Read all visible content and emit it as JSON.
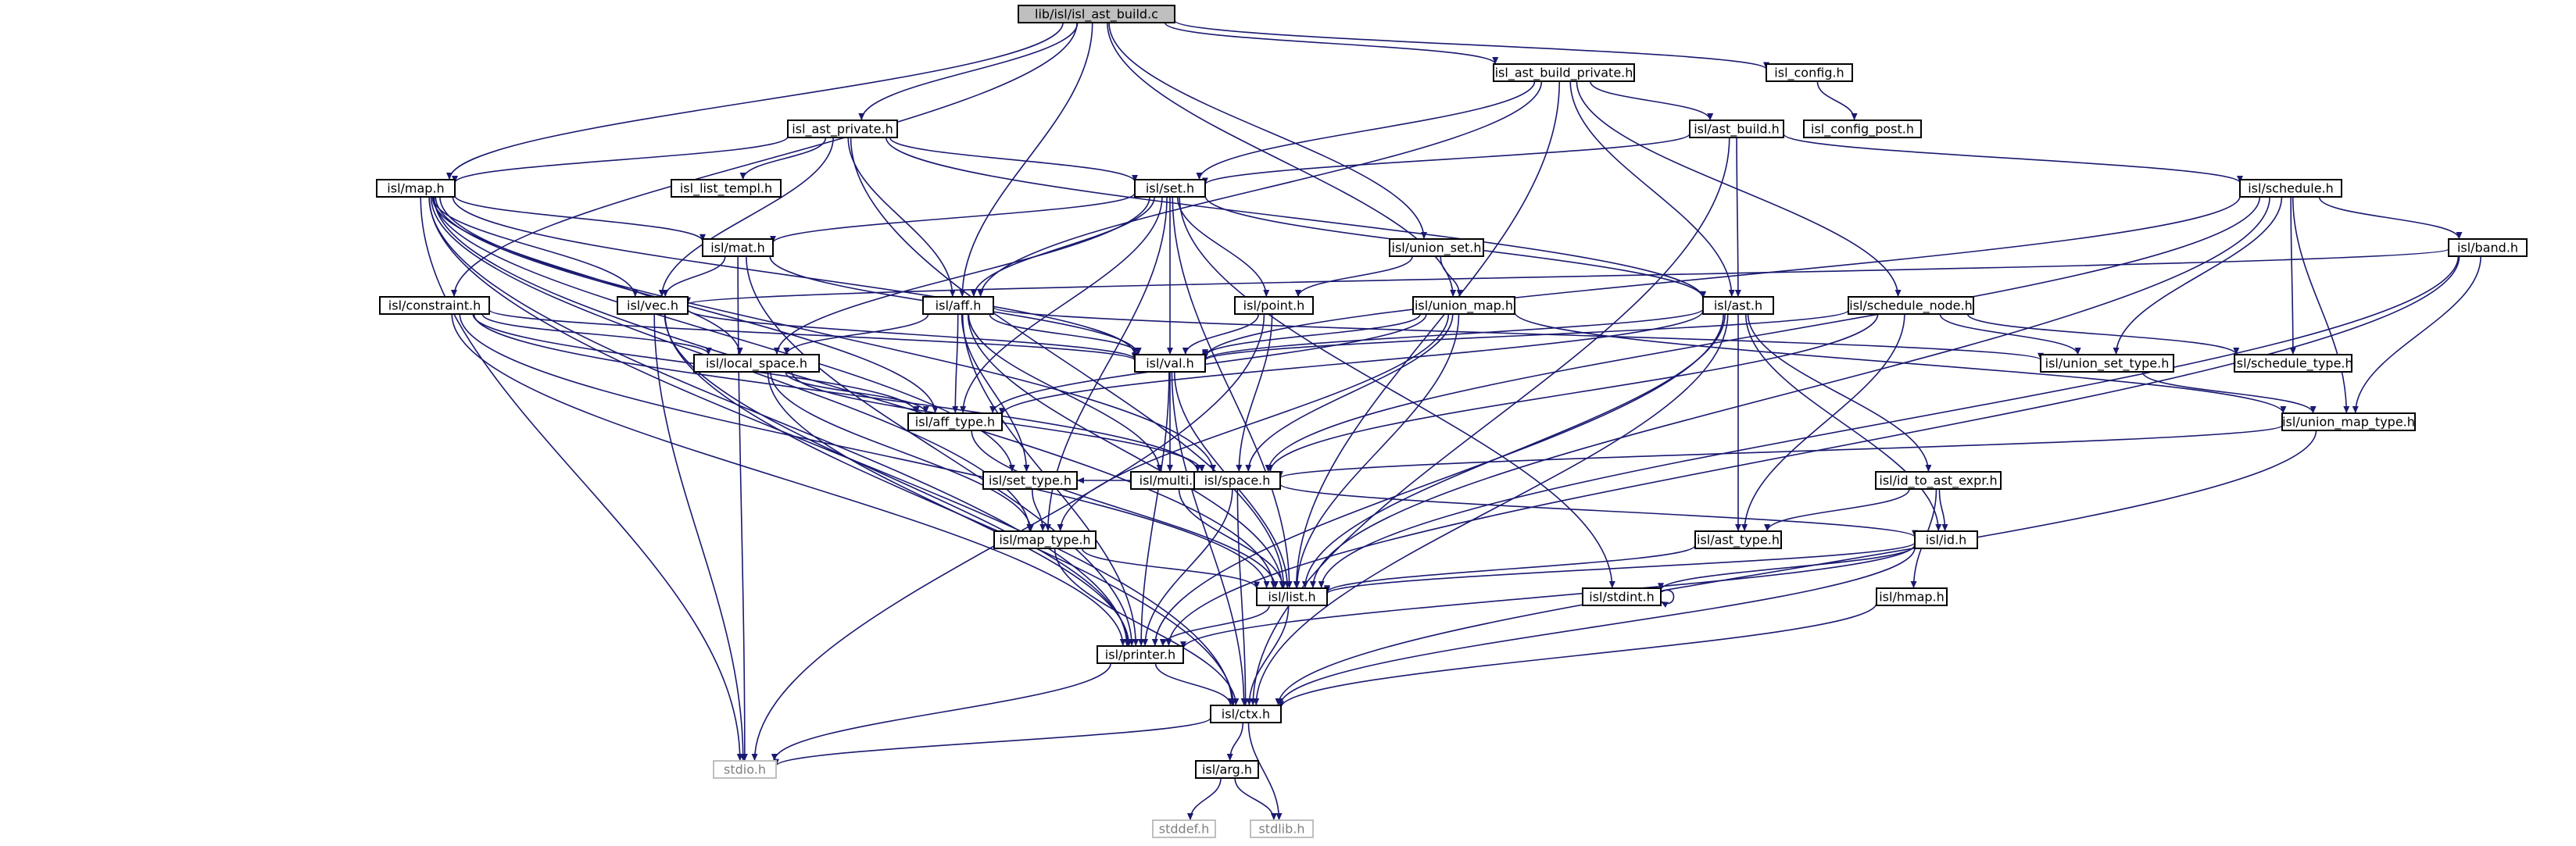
{
  "diagram": {
    "root": "lib/isl/isl_ast_build.c",
    "colors": {
      "edge": "#191970",
      "root_fill": "#bfbfbf",
      "node_border": "#000000",
      "system_border": "#bfbfbf",
      "system_text": "#7f7f7f"
    },
    "nodes": [
      {
        "id": "root",
        "label": "lib/isl/isl_ast_build.c",
        "kind": "root"
      },
      {
        "id": "ast_build_private",
        "label": "isl_ast_build_private.h"
      },
      {
        "id": "config",
        "label": "isl_config.h"
      },
      {
        "id": "config_post",
        "label": "isl_config_post.h"
      },
      {
        "id": "ast_private",
        "label": "isl_ast_private.h"
      },
      {
        "id": "ast_build",
        "label": "isl/ast_build.h"
      },
      {
        "id": "list_templ",
        "label": "isl_list_templ.h"
      },
      {
        "id": "map",
        "label": "isl/map.h"
      },
      {
        "id": "set",
        "label": "isl/set.h"
      },
      {
        "id": "schedule",
        "label": "isl/schedule.h"
      },
      {
        "id": "mat",
        "label": "isl/mat.h"
      },
      {
        "id": "union_set",
        "label": "isl/union_set.h"
      },
      {
        "id": "band",
        "label": "isl/band.h"
      },
      {
        "id": "constraint",
        "label": "isl/constraint.h"
      },
      {
        "id": "vec",
        "label": "isl/vec.h"
      },
      {
        "id": "aff",
        "label": "isl/aff.h"
      },
      {
        "id": "point",
        "label": "isl/point.h"
      },
      {
        "id": "union_map",
        "label": "isl/union_map.h"
      },
      {
        "id": "ast",
        "label": "isl/ast.h"
      },
      {
        "id": "schedule_node",
        "label": "isl/schedule_node.h"
      },
      {
        "id": "local_space",
        "label": "isl/local_space.h"
      },
      {
        "id": "val",
        "label": "isl/val.h"
      },
      {
        "id": "union_set_type",
        "label": "isl/union_set_type.h"
      },
      {
        "id": "schedule_type",
        "label": "isl/schedule_type.h"
      },
      {
        "id": "aff_type",
        "label": "isl/aff_type.h"
      },
      {
        "id": "union_map_type",
        "label": "isl/union_map_type.h"
      },
      {
        "id": "multi",
        "label": "isl/multi.h"
      },
      {
        "id": "set_type",
        "label": "isl/set_type.h"
      },
      {
        "id": "space",
        "label": "isl/space.h"
      },
      {
        "id": "id_to_ast_expr",
        "label": "isl/id_to_ast_expr.h"
      },
      {
        "id": "map_type",
        "label": "isl/map_type.h"
      },
      {
        "id": "ast_type",
        "label": "isl/ast_type.h"
      },
      {
        "id": "id",
        "label": "isl/id.h"
      },
      {
        "id": "list",
        "label": "isl/list.h"
      },
      {
        "id": "stdint",
        "label": "isl/stdint.h"
      },
      {
        "id": "hmap",
        "label": "isl/hmap.h"
      },
      {
        "id": "printer",
        "label": "isl/printer.h"
      },
      {
        "id": "ctx",
        "label": "isl/ctx.h"
      },
      {
        "id": "stdio",
        "label": "stdio.h",
        "kind": "sys"
      },
      {
        "id": "arg",
        "label": "isl/arg.h"
      },
      {
        "id": "stddef",
        "label": "stddef.h",
        "kind": "sys"
      },
      {
        "id": "stdlib",
        "label": "stdlib.h",
        "kind": "sys"
      }
    ],
    "edges": [
      [
        "root",
        "ast_build_private"
      ],
      [
        "root",
        "config"
      ],
      [
        "root",
        "ast_private"
      ],
      [
        "root",
        "map"
      ],
      [
        "root",
        "constraint"
      ],
      [
        "root",
        "aff"
      ],
      [
        "root",
        "union_set"
      ],
      [
        "root",
        "union_map"
      ],
      [
        "config",
        "config_post"
      ],
      [
        "ast_build_private",
        "set"
      ],
      [
        "ast_build_private",
        "ast_build"
      ],
      [
        "ast_build_private",
        "aff"
      ],
      [
        "ast_build_private",
        "ast"
      ],
      [
        "ast_build_private",
        "schedule_node"
      ],
      [
        "ast_build_private",
        "list"
      ],
      [
        "ast_private",
        "list_templ"
      ],
      [
        "ast_private",
        "map"
      ],
      [
        "ast_private",
        "set"
      ],
      [
        "ast_private",
        "aff"
      ],
      [
        "ast_private",
        "vec"
      ],
      [
        "ast_private",
        "ast"
      ],
      [
        "ast_private",
        "list"
      ],
      [
        "ast_build",
        "set"
      ],
      [
        "ast_build",
        "ast"
      ],
      [
        "ast_build",
        "schedule"
      ],
      [
        "ast_build",
        "ctx"
      ],
      [
        "map",
        "mat"
      ],
      [
        "map",
        "vec"
      ],
      [
        "map",
        "local_space"
      ],
      [
        "map",
        "val"
      ],
      [
        "map",
        "aff_type"
      ],
      [
        "map",
        "space"
      ],
      [
        "map",
        "set_type"
      ],
      [
        "map",
        "map_type"
      ],
      [
        "map",
        "list"
      ],
      [
        "map",
        "printer"
      ],
      [
        "map",
        "ctx"
      ],
      [
        "map",
        "stdio"
      ],
      [
        "set",
        "mat"
      ],
      [
        "set",
        "point"
      ],
      [
        "set",
        "aff"
      ],
      [
        "set",
        "val"
      ],
      [
        "set",
        "ast"
      ],
      [
        "set",
        "local_space"
      ],
      [
        "set",
        "aff_type"
      ],
      [
        "set",
        "map_type"
      ],
      [
        "set",
        "list"
      ],
      [
        "set",
        "stdint"
      ],
      [
        "schedule",
        "band"
      ],
      [
        "schedule",
        "union_set_type"
      ],
      [
        "schedule",
        "schedule_type"
      ],
      [
        "schedule",
        "union_map_type"
      ],
      [
        "schedule",
        "val"
      ],
      [
        "schedule",
        "space"
      ],
      [
        "schedule",
        "list"
      ],
      [
        "mat",
        "vec"
      ],
      [
        "mat",
        "val"
      ],
      [
        "mat",
        "printer"
      ],
      [
        "mat",
        "stdio"
      ],
      [
        "union_set",
        "point"
      ],
      [
        "union_set",
        "union_map"
      ],
      [
        "band",
        "vec"
      ],
      [
        "band",
        "union_map_type"
      ],
      [
        "band",
        "list"
      ],
      [
        "band",
        "printer"
      ],
      [
        "constraint",
        "local_space"
      ],
      [
        "constraint",
        "aff_type"
      ],
      [
        "constraint",
        "space"
      ],
      [
        "constraint",
        "val"
      ],
      [
        "constraint",
        "printer"
      ],
      [
        "constraint",
        "list"
      ],
      [
        "vec",
        "val"
      ],
      [
        "vec",
        "printer"
      ],
      [
        "vec",
        "ctx"
      ],
      [
        "vec",
        "stdio"
      ],
      [
        "aff",
        "local_space"
      ],
      [
        "aff",
        "val"
      ],
      [
        "aff",
        "aff_type"
      ],
      [
        "aff",
        "set_type"
      ],
      [
        "aff",
        "multi"
      ],
      [
        "aff",
        "union_set_type"
      ],
      [
        "aff",
        "list"
      ],
      [
        "aff",
        "printer"
      ],
      [
        "point",
        "val"
      ],
      [
        "point",
        "space"
      ],
      [
        "point",
        "stdio"
      ],
      [
        "union_map",
        "val"
      ],
      [
        "union_map",
        "aff_type"
      ],
      [
        "union_map",
        "space"
      ],
      [
        "union_map",
        "map_type"
      ],
      [
        "union_map",
        "union_map_type"
      ],
      [
        "union_map",
        "list"
      ],
      [
        "ast",
        "val"
      ],
      [
        "ast",
        "ast_type"
      ],
      [
        "ast",
        "id_to_ast_expr"
      ],
      [
        "ast",
        "id"
      ],
      [
        "ast",
        "list"
      ],
      [
        "ast",
        "printer"
      ],
      [
        "ast",
        "aff_type"
      ],
      [
        "ast",
        "ctx"
      ],
      [
        "schedule_node",
        "union_set_type"
      ],
      [
        "schedule_node",
        "schedule_type"
      ],
      [
        "schedule_node",
        "val"
      ],
      [
        "schedule_node",
        "space"
      ],
      [
        "schedule_node",
        "ast_type"
      ],
      [
        "local_space",
        "aff_type"
      ],
      [
        "local_space",
        "space"
      ],
      [
        "local_space",
        "map_type"
      ],
      [
        "local_space",
        "printer"
      ],
      [
        "val",
        "multi"
      ],
      [
        "val",
        "list"
      ],
      [
        "val",
        "printer"
      ],
      [
        "val",
        "ctx"
      ],
      [
        "union_set_type",
        "union_map_type"
      ],
      [
        "union_map_type",
        "ctx"
      ],
      [
        "union_map_type",
        "space"
      ],
      [
        "aff_type",
        "list"
      ],
      [
        "multi",
        "set_type"
      ],
      [
        "multi",
        "space"
      ],
      [
        "multi",
        "list"
      ],
      [
        "set_type",
        "map_type"
      ],
      [
        "space",
        "id"
      ],
      [
        "space",
        "printer"
      ],
      [
        "space",
        "ctx"
      ],
      [
        "id_to_ast_expr",
        "ast_type"
      ],
      [
        "id_to_ast_expr",
        "id"
      ],
      [
        "id_to_ast_expr",
        "hmap"
      ],
      [
        "map_type",
        "list"
      ],
      [
        "map_type",
        "ctx"
      ],
      [
        "ast_type",
        "list"
      ],
      [
        "id",
        "list"
      ],
      [
        "id",
        "stdint"
      ],
      [
        "id",
        "printer"
      ],
      [
        "id",
        "ctx"
      ],
      [
        "stdint",
        "stdint"
      ],
      [
        "list",
        "printer"
      ],
      [
        "list",
        "ctx"
      ],
      [
        "hmap",
        "ctx"
      ],
      [
        "printer",
        "ctx"
      ],
      [
        "printer",
        "stdio"
      ],
      [
        "ctx",
        "stdio"
      ],
      [
        "ctx",
        "arg"
      ],
      [
        "ctx",
        "stdlib"
      ],
      [
        "arg",
        "stddef"
      ],
      [
        "arg",
        "stdlib"
      ]
    ]
  }
}
